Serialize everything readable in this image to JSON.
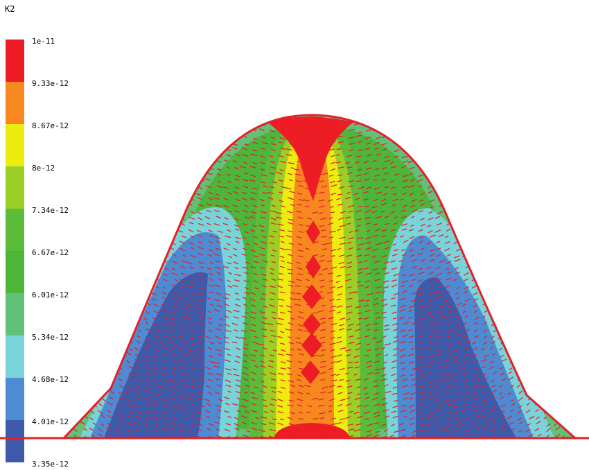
{
  "legend": {
    "title": "K2",
    "labels": [
      "1e-11",
      "9.33e-12",
      "8.67e-12",
      "8e-12",
      "7.34e-12",
      "6.67e-12",
      "6.01e-12",
      "5.34e-12",
      "4.68e-12",
      "4.01e-12",
      "3.35e-12"
    ],
    "colors": [
      "#ee1c24",
      "#f7881f",
      "#ecec0e",
      "#9ccf25",
      "#5dbb3a",
      "#4cb53a",
      "#62c178",
      "#78d4d8",
      "#4e8bd2",
      "#3e5aaa"
    ]
  },
  "colors": {
    "vectors": "#e4202a",
    "ground": "#e4202a"
  }
}
